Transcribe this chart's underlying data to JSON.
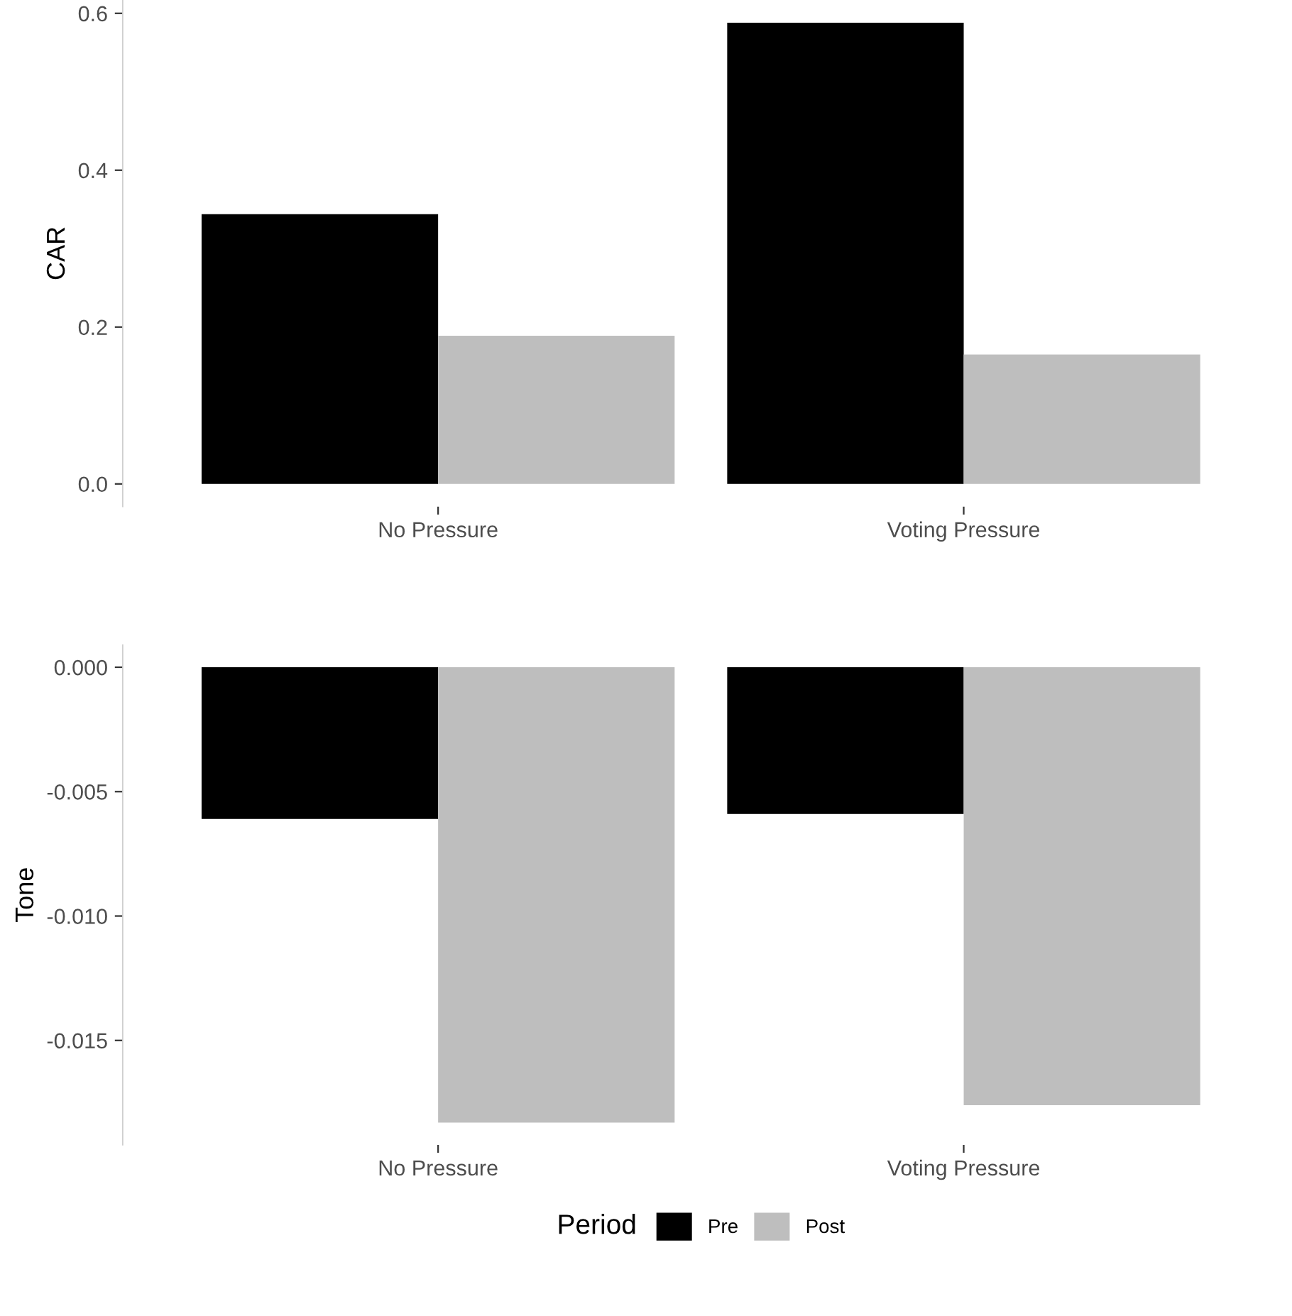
{
  "chart_data": [
    {
      "type": "bar",
      "ylabel": "CAR",
      "categories": [
        "No Pressure",
        "Voting Pressure"
      ],
      "series": [
        {
          "color": "#000000",
          "values": [
            0.344,
            0.588
          ]
        },
        {
          "color": "#bebebe",
          "values": [
            0.189,
            0.165
          ]
        }
      ],
      "ylim": [
        -0.029,
        0.617
      ],
      "yticks": [
        {
          "value": 0,
          "label": "0.0"
        },
        {
          "value": 0.2,
          "label": "0.2"
        },
        {
          "value": 0.4,
          "label": "0.4"
        },
        {
          "value": 0.6,
          "label": "0.6"
        }
      ],
      "grid": false
    },
    {
      "type": "bar",
      "ylabel": "Tone",
      "categories": [
        "No Pressure",
        "Voting Pressure"
      ],
      "series": [
        {
          "name": "Pre",
          "color": "#000000",
          "values": [
            -0.0061,
            -0.0059
          ]
        },
        {
          "name": "Post",
          "color": "#bebebe",
          "values": [
            -0.0183,
            -0.0176
          ]
        }
      ],
      "ylim": [
        -0.0192,
        0.0009
      ],
      "yticks": [
        {
          "value": 0,
          "label": "0.000"
        },
        {
          "value": -0.005,
          "label": "-0.005"
        },
        {
          "value": -0.01,
          "label": "-0.010"
        },
        {
          "value": -0.015,
          "label": "-0.015"
        }
      ],
      "grid": false,
      "legend": "bottom",
      "legend_title": "Period"
    }
  ]
}
